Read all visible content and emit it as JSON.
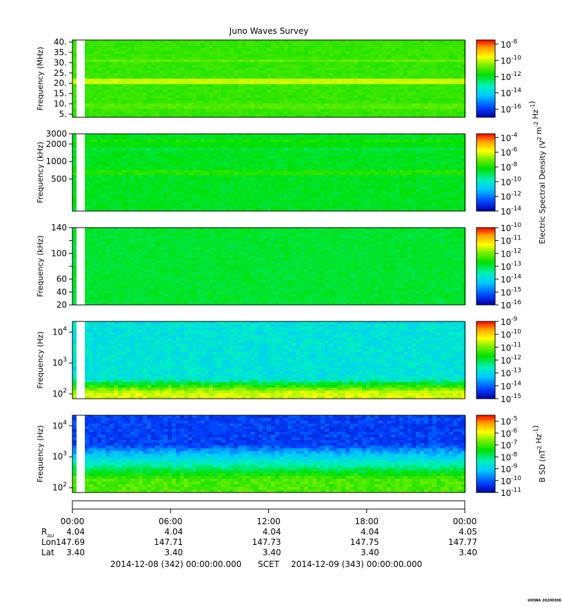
{
  "title": "Juno Waves Survey",
  "credit": "UIOWA 20200306",
  "colors": {
    "colormap": [
      "#0000a0",
      "#0040ff",
      "#00c8ff",
      "#00f0c0",
      "#00e000",
      "#80f000",
      "#ffff00",
      "#ffa000",
      "#ff0000"
    ],
    "frame": "#000000"
  },
  "chart_data": [
    {
      "type": "heatmap",
      "ylabel": "Frequency (MHz)",
      "yscale": "linear",
      "ylim": [
        3.5,
        41
      ],
      "yticks": [
        5,
        10,
        15,
        20,
        25,
        30,
        35,
        40
      ],
      "ytick_labels": [
        "5.",
        "10.",
        "15.",
        "20.",
        "25.",
        "30.",
        "35.",
        "40."
      ],
      "colorbar": {
        "label": "",
        "log_range": [
          -17,
          -7.5
        ],
        "tick_exponents": [
          -16,
          -14,
          -12,
          -10,
          -8
        ]
      },
      "texture": {
        "base": 0.55,
        "noise": 0.02,
        "bands": [
          [
            21,
            0.15
          ],
          [
            31,
            0.04
          ],
          [
            9,
            0.03
          ]
        ],
        "lowboost": 0,
        "lowcut": 0
      }
    },
    {
      "type": "heatmap",
      "ylabel": "Frequency (kHz)",
      "yscale": "log",
      "ylim": [
        140,
        3000
      ],
      "yticks": [
        500,
        1000,
        2000,
        3000
      ],
      "ytick_labels": [
        "500",
        "1000",
        "2000",
        "3000"
      ],
      "colorbar": {
        "label": "Electric Spectral Density (V^2 m^-2 Hz^-1)",
        "log_range": [
          -14,
          -3.5
        ],
        "tick_exponents": [
          -14,
          -12,
          -10,
          -8,
          -6,
          -4
        ]
      },
      "texture": {
        "base": 0.48,
        "noise": 0.02,
        "bands": [
          [
            650,
            0.05
          ],
          [
            2100,
            0.04
          ],
          [
            1800,
            -0.02
          ]
        ],
        "lowboost": 0,
        "lowcut": 0
      }
    },
    {
      "type": "heatmap",
      "ylabel": "Frequency (kHz)",
      "yscale": "linear",
      "ylim": [
        20,
        140
      ],
      "yticks": [
        20,
        40,
        60,
        80,
        100,
        120,
        140
      ],
      "ytick_labels": [
        "20",
        "40",
        "60",
        "",
        "100",
        "",
        "140"
      ],
      "colorbar": {
        "label": "",
        "log_range": [
          -16,
          -10
        ],
        "tick_exponents": [
          -16,
          -15,
          -14,
          -13,
          -12,
          -11,
          -10
        ]
      },
      "texture": {
        "base": 0.47,
        "noise": 0.02,
        "bands": [],
        "lowboost": 0,
        "lowcut": 0
      }
    },
    {
      "type": "heatmap",
      "ylabel": "Frequency (Hz)",
      "yscale": "log",
      "ylim": [
        70,
        22000
      ],
      "yticks": [
        100,
        1000,
        10000
      ],
      "ytick_labels": [
        "10^2",
        "10^3",
        "10^4"
      ],
      "colorbar": {
        "label": "",
        "log_range": [
          -15,
          -9
        ],
        "tick_exponents": [
          -15,
          -14,
          -13,
          -12,
          -11,
          -10,
          -9
        ]
      },
      "texture": {
        "base": 0.33,
        "noise": 0.05,
        "bands": [],
        "lowboost": 0.38,
        "lowcut": 320
      }
    },
    {
      "type": "heatmap",
      "ylabel": "Frequency (Hz)",
      "yscale": "log",
      "ylim": [
        70,
        22000
      ],
      "yticks": [
        100,
        1000,
        10000
      ],
      "ytick_labels": [
        "10^2",
        "10^3",
        "10^4"
      ],
      "colorbar": {
        "label": "B SD (nT^2 Hz^-1)",
        "log_range": [
          -11,
          -4.5
        ],
        "tick_exponents": [
          -11,
          -10,
          -9,
          -8,
          -7,
          -6,
          -5
        ]
      },
      "texture": {
        "base": 0.12,
        "noise": 0.04,
        "bands": [],
        "lowboost": 0.45,
        "lowcut": 2500
      }
    }
  ],
  "time_axis": {
    "ticks": [
      "00:00",
      "06:00",
      "12:00",
      "18:00",
      "00:00"
    ],
    "rows": [
      {
        "label": "R_AU",
        "values": [
          "4.04",
          "4.04",
          "4.04",
          "4.04",
          "4.05"
        ]
      },
      {
        "label": "Lon",
        "values": [
          "147.69",
          "147.71",
          "147.73",
          "147.75",
          "147.77"
        ]
      },
      {
        "label": "Lat",
        "values": [
          "3.40",
          "3.40",
          "3.40",
          "3.40",
          "3.40"
        ]
      }
    ],
    "start_label": "2014-12-08 (342) 00:00:00.000",
    "coord_label": "SCET",
    "end_label": "2014-12-09 (343) 00:00:00.000"
  }
}
